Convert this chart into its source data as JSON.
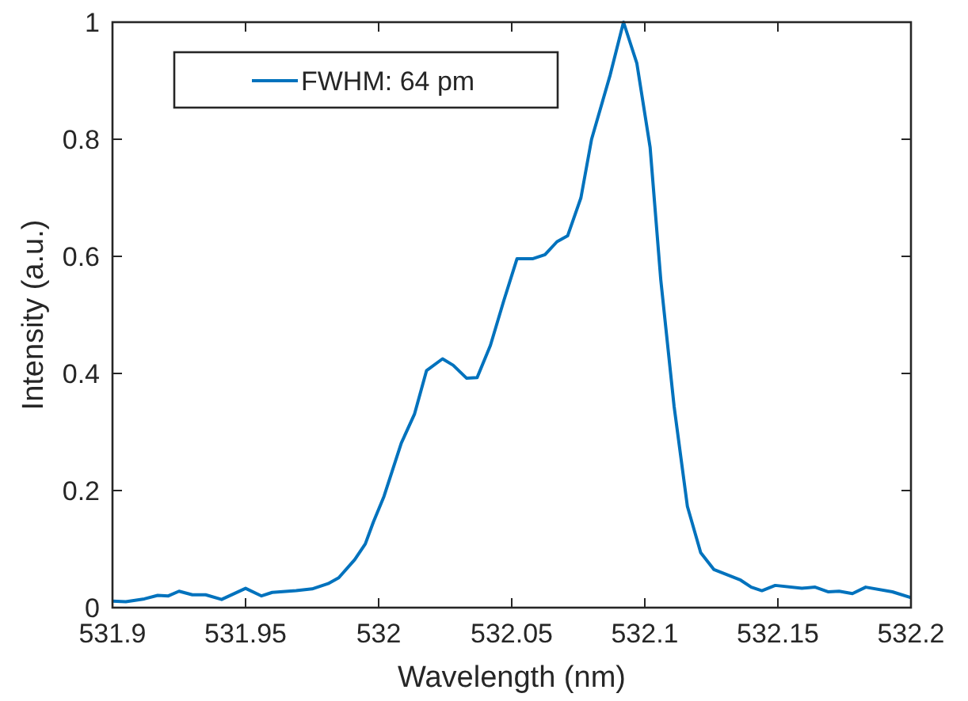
{
  "chart_data": {
    "type": "line",
    "xlabel": "Wavelength (nm)",
    "ylabel": "Intensity (a.u.)",
    "xlim": [
      531.9,
      532.2
    ],
    "xticks": [
      531.9,
      531.95,
      532,
      532.05,
      532.1,
      532.15,
      532.2
    ],
    "ylim": [
      0,
      1
    ],
    "yticks": [
      0,
      0.2,
      0.4,
      0.6,
      0.8,
      1
    ],
    "grid": false,
    "legend": "top left",
    "line_style": "solid",
    "marker": "none",
    "series": [
      {
        "name": "FWHM: 64 pm",
        "color": "#0072bd",
        "x": [
          531.9,
          531.905,
          531.912,
          531.917,
          531.921,
          531.925,
          531.93,
          531.935,
          531.941,
          531.95,
          531.956,
          531.96,
          531.969,
          531.975,
          531.981,
          531.985,
          531.991,
          531.995,
          531.998,
          532.002,
          532.0085,
          532.0135,
          532.018,
          532.024,
          532.028,
          532.033,
          532.037,
          532.042,
          532.047,
          532.052,
          532.058,
          532.0625,
          532.067,
          532.071,
          532.076,
          532.08,
          532.087,
          532.092,
          532.097,
          532.102,
          532.106,
          532.111,
          532.116,
          532.121,
          532.126,
          532.136,
          532.14,
          532.144,
          532.149,
          532.159,
          532.164,
          532.169,
          532.173,
          532.178,
          532.183,
          532.193,
          532.2
        ],
        "values": [
          0.011,
          0.01,
          0.015,
          0.021,
          0.02,
          0.028,
          0.022,
          0.022,
          0.014,
          0.033,
          0.02,
          0.026,
          0.029,
          0.032,
          0.041,
          0.051,
          0.082,
          0.109,
          0.146,
          0.19,
          0.281,
          0.331,
          0.405,
          0.425,
          0.414,
          0.392,
          0.393,
          0.448,
          0.524,
          0.596,
          0.596,
          0.603,
          0.625,
          0.635,
          0.7,
          0.8,
          0.91,
          1.0,
          0.93,
          0.786,
          0.56,
          0.344,
          0.173,
          0.094,
          0.065,
          0.047,
          0.035,
          0.029,
          0.038,
          0.033,
          0.035,
          0.027,
          0.028,
          0.024,
          0.035,
          0.027,
          0.017
        ]
      }
    ]
  }
}
